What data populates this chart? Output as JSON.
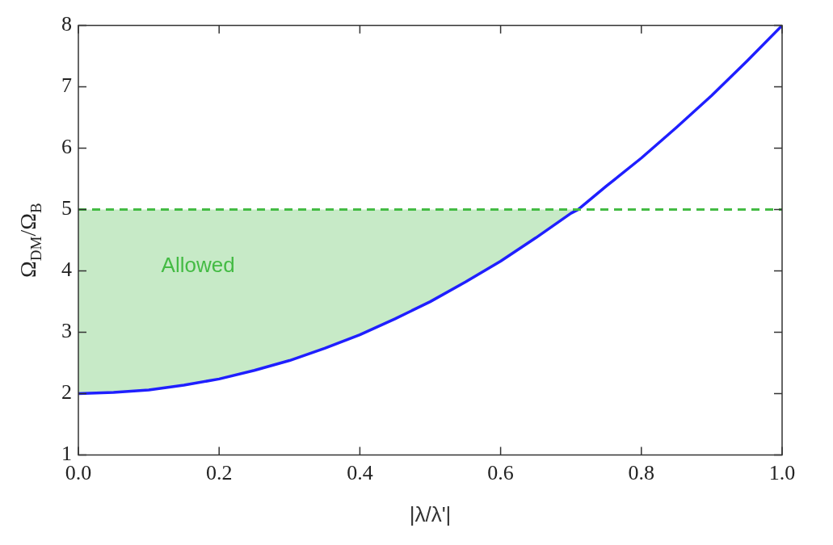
{
  "chart_data": {
    "type": "line",
    "xlabel": "|λ/λ'|",
    "ylabel": "Ω$_{DM}$/Ω$_{B}$",
    "x": [
      0,
      0.05,
      0.1,
      0.15,
      0.2,
      0.25,
      0.3,
      0.35,
      0.4,
      0.45,
      0.5,
      0.55,
      0.6,
      0.65,
      0.7,
      0.71,
      0.75,
      0.8,
      0.85,
      0.9,
      0.95,
      1
    ],
    "series": [
      {
        "color": "#1f1fff",
        "values": [
          2,
          2.02,
          2.06,
          2.14,
          2.24,
          2.38,
          2.54,
          2.74,
          2.96,
          3.22,
          3.5,
          3.82,
          4.16,
          4.54,
          4.94,
          5,
          5.38,
          5.84,
          6.34,
          6.86,
          7.42,
          8
        ],
        "lower": [
          2,
          2.02,
          2.06,
          2.14,
          2.24,
          2.38,
          2.54,
          2.74,
          2.96,
          3.22,
          3.5,
          3.82,
          4.16,
          4.54,
          4.94,
          5,
          null,
          null,
          null,
          null,
          null,
          null
        ],
        "upper": [
          5,
          5,
          5,
          5,
          5,
          5,
          5,
          5,
          5,
          5,
          5,
          5,
          5,
          5,
          5,
          5,
          null,
          null,
          null,
          null,
          null,
          null
        ]
      }
    ],
    "ref_lines": [
      {
        "axis": "y",
        "value": 5,
        "color": "#44bb44",
        "line_style": "dashed"
      }
    ],
    "annotations": [
      "Allowed"
    ],
    "xlim": [
      0,
      1
    ],
    "ylim": [
      1,
      8
    ],
    "xticks": [
      {
        "value": 0,
        "label": "0.0"
      },
      {
        "value": 0.2,
        "label": "0.2"
      },
      {
        "value": 0.4,
        "label": "0.4"
      },
      {
        "value": 0.6,
        "label": "0.6"
      },
      {
        "value": 0.8,
        "label": "0.8"
      },
      {
        "value": 1,
        "label": "1.0"
      }
    ],
    "yticks": [
      1,
      2,
      3,
      4,
      5,
      6,
      7,
      8
    ],
    "grid": false,
    "legend": false,
    "marker": "none",
    "line_style": "solid"
  }
}
